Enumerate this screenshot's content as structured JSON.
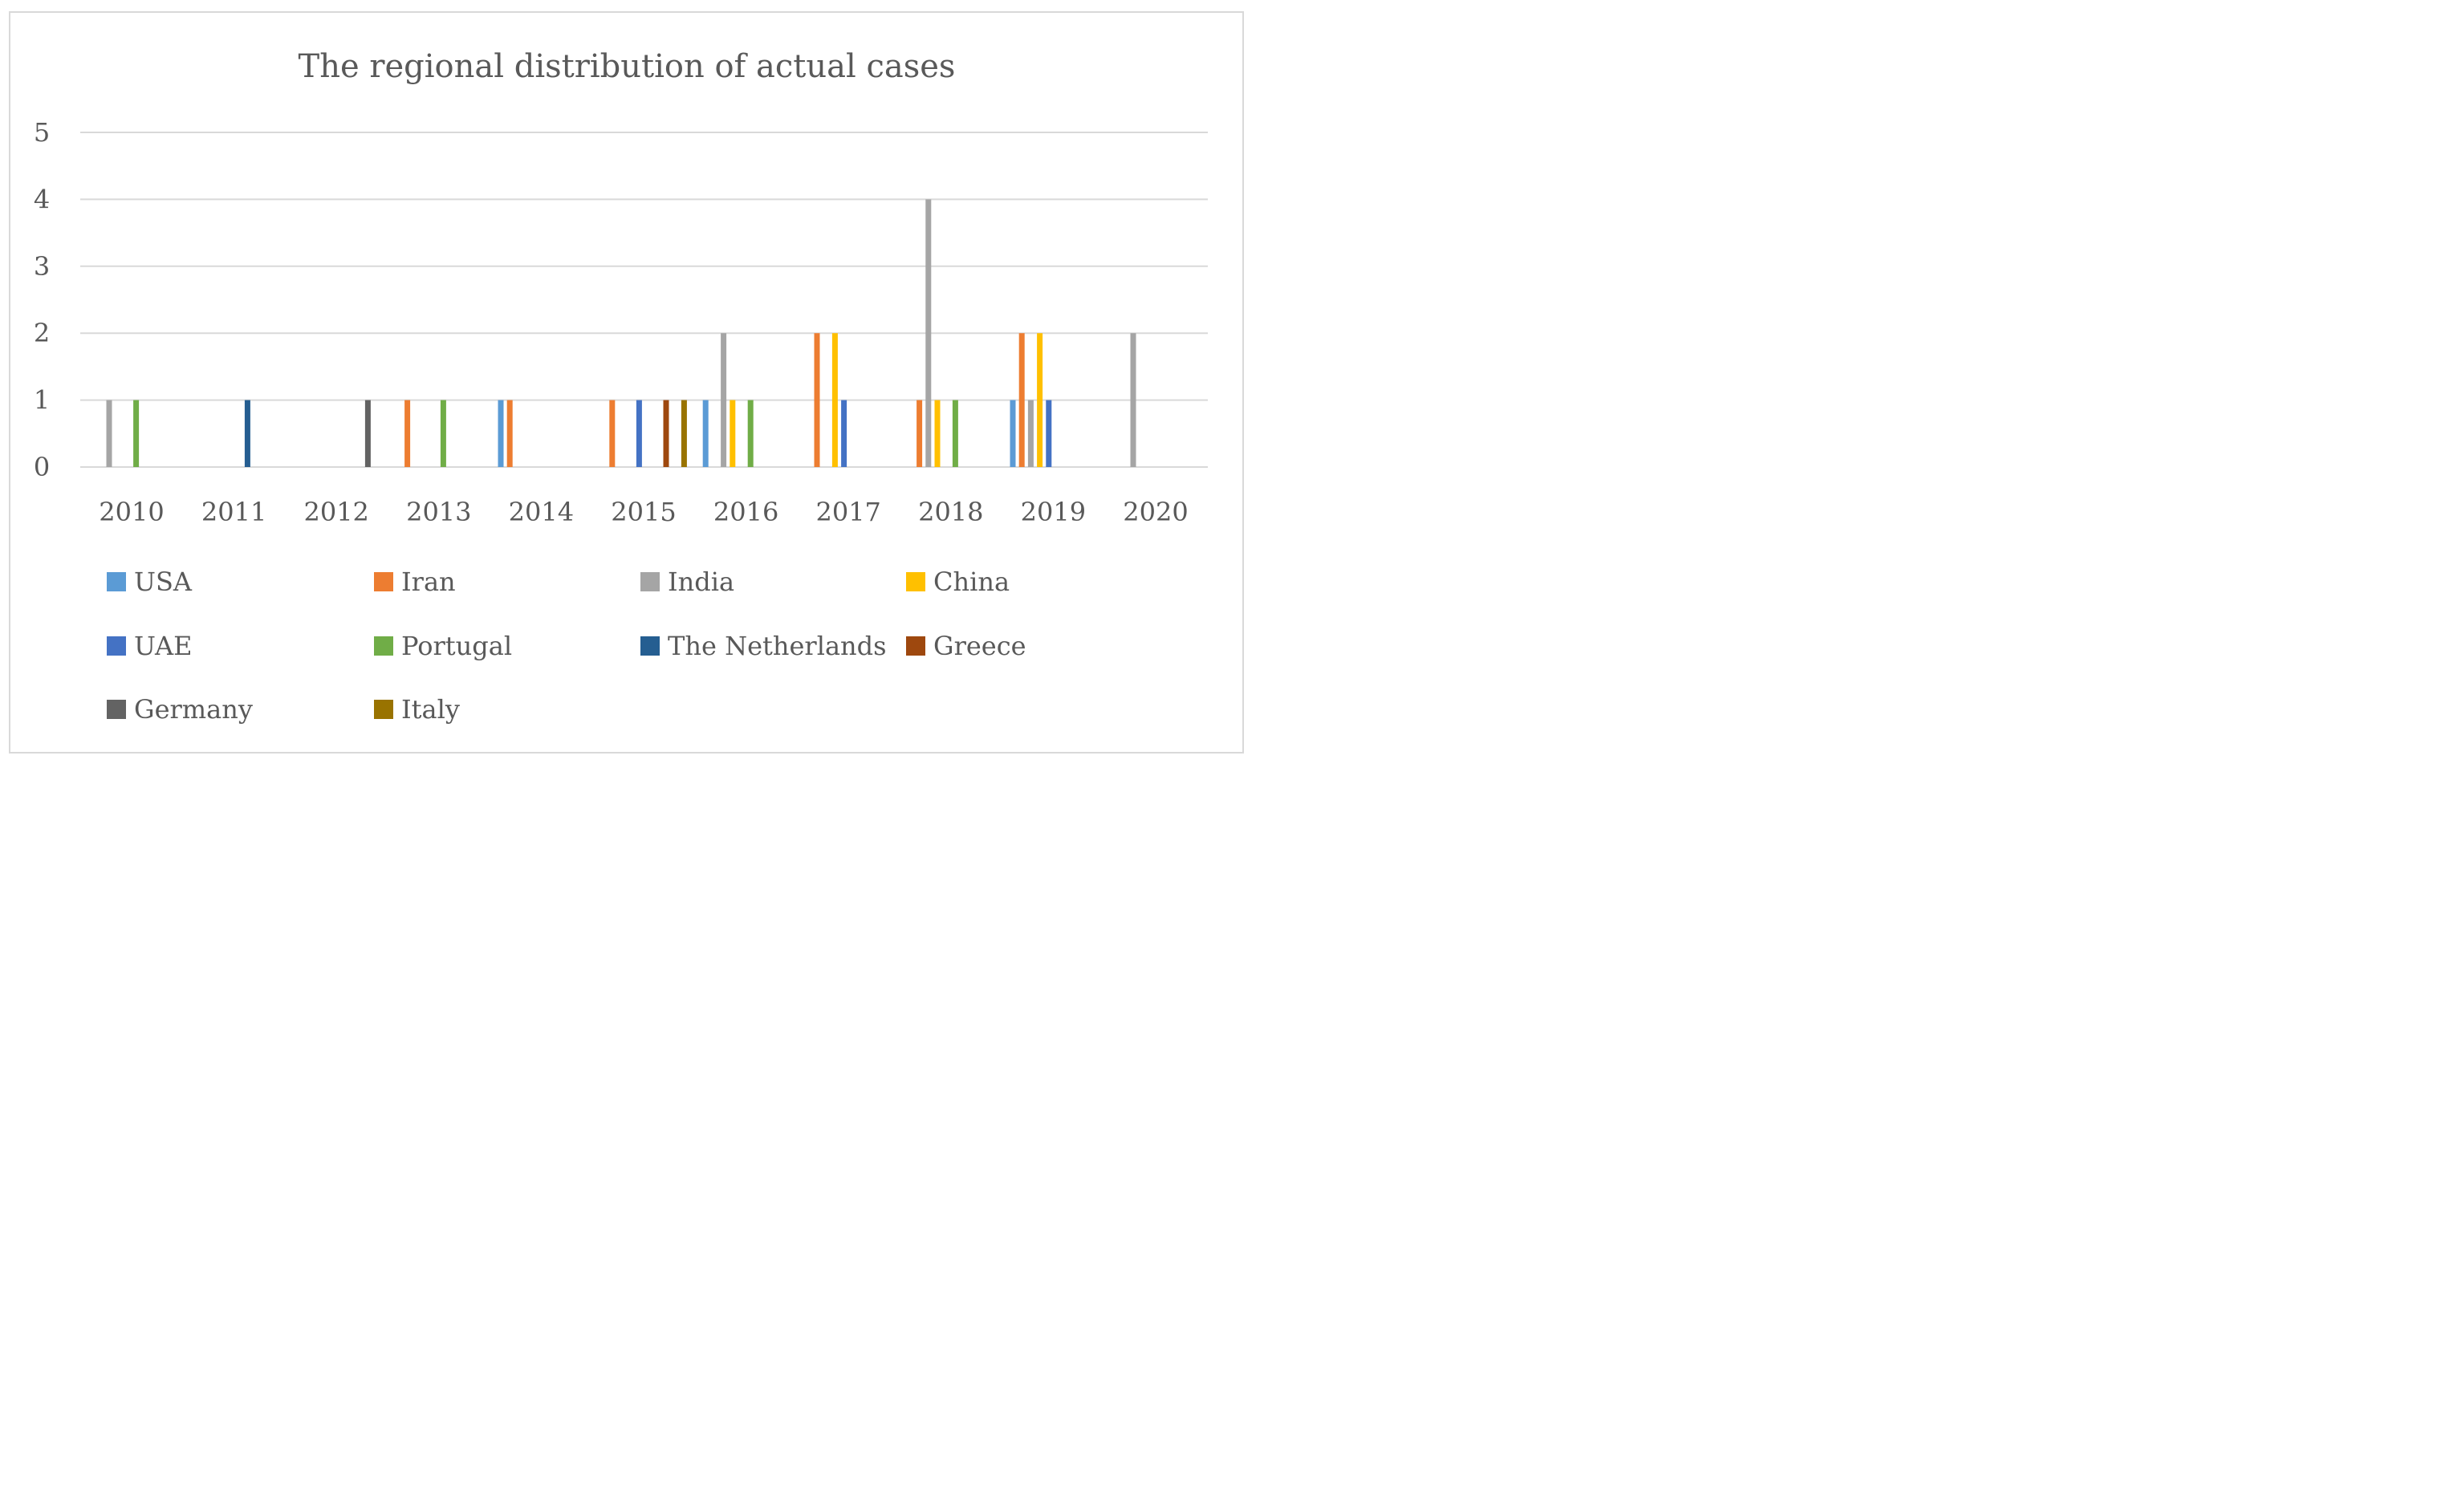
{
  "chart_data": {
    "type": "bar",
    "title": "The regional distribution of  actual cases",
    "xlabel": "",
    "ylabel": "",
    "ylim": [
      0,
      5
    ],
    "yticks": [
      "0",
      "1",
      "2",
      "3",
      "4",
      "5"
    ],
    "grid": true,
    "legend_position": "bottom",
    "categories": [
      "2010",
      "2011",
      "2012",
      "2013",
      "2014",
      "2015",
      "2016",
      "2017",
      "2018",
      "2019",
      "2020"
    ],
    "series": [
      {
        "name": "USA",
        "color": "#5B9BD5",
        "values": [
          0,
          0,
          0,
          0,
          1,
          0,
          1,
          0,
          0,
          1,
          0
        ]
      },
      {
        "name": "Iran",
        "color": "#ED7D31",
        "values": [
          0,
          0,
          0,
          1,
          1,
          1,
          0,
          2,
          1,
          2,
          0
        ]
      },
      {
        "name": "India",
        "color": "#A5A5A5",
        "values": [
          1,
          0,
          0,
          0,
          0,
          0,
          2,
          0,
          4,
          1,
          2
        ]
      },
      {
        "name": "China",
        "color": "#FFC000",
        "values": [
          0,
          0,
          0,
          0,
          0,
          0,
          1,
          2,
          1,
          2,
          0
        ]
      },
      {
        "name": "UAE",
        "color": "#4472C4",
        "values": [
          0,
          0,
          0,
          0,
          0,
          1,
          0,
          1,
          0,
          1,
          0
        ]
      },
      {
        "name": "Portugal",
        "color": "#70AD47",
        "values": [
          1,
          0,
          0,
          1,
          0,
          0,
          1,
          0,
          1,
          0,
          0
        ]
      },
      {
        "name": "The Netherlands",
        "color": "#255E91",
        "values": [
          0,
          1,
          0,
          0,
          0,
          0,
          0,
          0,
          0,
          0,
          0
        ]
      },
      {
        "name": "Greece",
        "color": "#9E480E",
        "values": [
          0,
          0,
          0,
          0,
          0,
          1,
          0,
          0,
          0,
          0,
          0
        ]
      },
      {
        "name": "Germany",
        "color": "#636363",
        "values": [
          0,
          0,
          1,
          0,
          0,
          0,
          0,
          0,
          0,
          0,
          0
        ]
      },
      {
        "name": "Italy",
        "color": "#997300",
        "values": [
          0,
          0,
          0,
          0,
          0,
          1,
          0,
          0,
          0,
          0,
          0
        ]
      }
    ]
  }
}
